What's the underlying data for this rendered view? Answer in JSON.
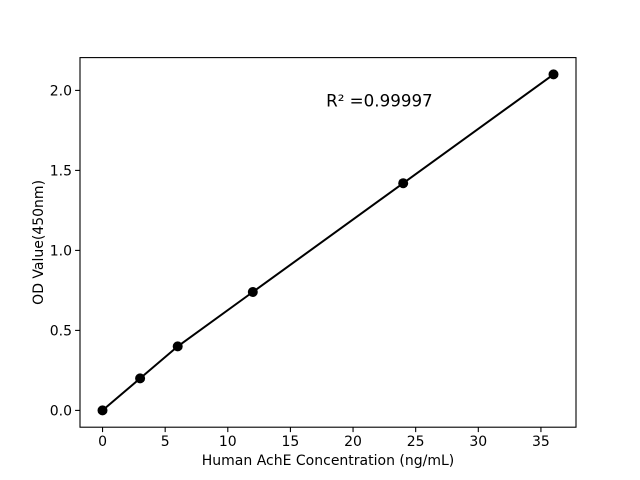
{
  "chart_data": {
    "type": "line",
    "title": "",
    "xlabel": "Human AchE Concentration (ng/mL)",
    "ylabel": "OD Value(450nm)",
    "series": [
      {
        "x": [
          0,
          3,
          6,
          12,
          24,
          36
        ],
        "y": [
          0.0,
          0.2,
          0.4,
          0.74,
          1.42,
          2.1
        ],
        "color": "#000000",
        "marker": "circle",
        "line_style": "solid"
      }
    ],
    "annotation": {
      "text": "R² =0.99997",
      "x": 22.1,
      "y": 1.9
    },
    "xlim": [
      -1.8,
      37.8
    ],
    "ylim": [
      -0.105,
      2.205
    ],
    "xticks": {
      "values": [
        0,
        5,
        10,
        15,
        20,
        25,
        30,
        35
      ],
      "labels": [
        "0",
        "5",
        "10",
        "15",
        "20",
        "25",
        "30",
        "35"
      ]
    },
    "yticks": {
      "values": [
        0,
        0.5,
        1,
        1.5,
        2
      ],
      "labels": [
        "0.0",
        "0.5",
        "1.0",
        "1.5",
        "2.0"
      ]
    },
    "grid": false,
    "legend": null,
    "background": "#ffffff",
    "axis_color": "#000000",
    "text_color": "#000000"
  }
}
